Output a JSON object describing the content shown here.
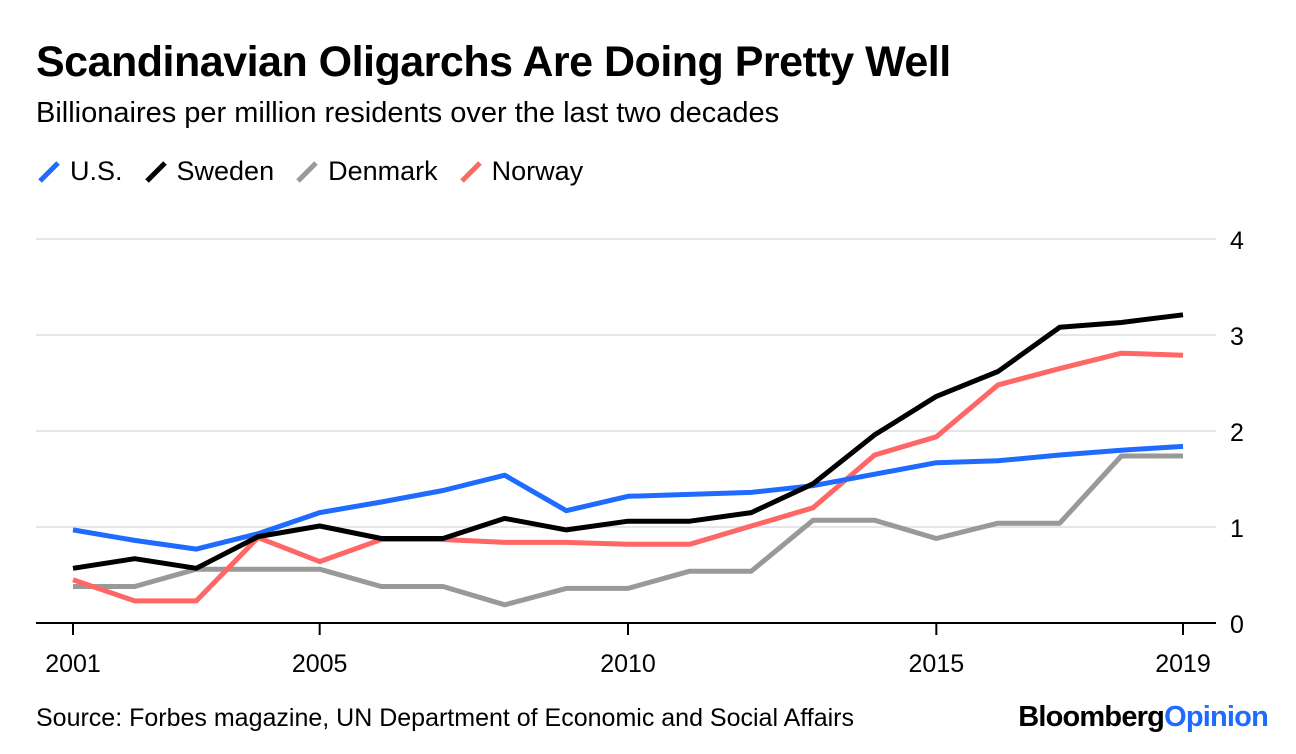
{
  "title": "Scandinavian Oligarchs Are Doing Pretty Well",
  "subtitle": "Billionaires per million residents over the last two decades",
  "source": "Source: Forbes magazine, UN Department of Economic and Social Affairs",
  "brand": {
    "part1": "Bloomberg",
    "part2": "Opinion",
    "color1": "#000000",
    "color2": "#1f6bff"
  },
  "chart_data": {
    "type": "line",
    "x": [
      2001,
      2002,
      2003,
      2004,
      2005,
      2006,
      2007,
      2008,
      2009,
      2010,
      2011,
      2012,
      2013,
      2014,
      2015,
      2016,
      2017,
      2018,
      2019
    ],
    "x_ticks": [
      2001,
      2005,
      2010,
      2015,
      2019
    ],
    "y_ticks": [
      0,
      1,
      2,
      3,
      4
    ],
    "ylim": [
      0,
      4
    ],
    "grid": true,
    "y_axis_side": "right",
    "legend_position": "top-left",
    "series": [
      {
        "name": "U.S.",
        "color": "#1f6bff",
        "values": [
          0.97,
          0.86,
          0.77,
          0.93,
          1.15,
          1.26,
          1.38,
          1.54,
          1.17,
          1.32,
          1.34,
          1.36,
          1.43,
          1.55,
          1.67,
          1.69,
          1.75,
          1.8,
          1.84
        ]
      },
      {
        "name": "Sweden",
        "color": "#000000",
        "values": [
          0.57,
          0.67,
          0.57,
          0.9,
          1.01,
          0.88,
          0.88,
          1.09,
          0.97,
          1.06,
          1.06,
          1.15,
          1.45,
          1.96,
          2.36,
          2.62,
          3.08,
          3.13,
          3.21
        ]
      },
      {
        "name": "Denmark",
        "color": "#999999",
        "values": [
          0.38,
          0.38,
          0.56,
          0.56,
          0.56,
          0.38,
          0.38,
          0.19,
          0.36,
          0.36,
          0.54,
          0.54,
          1.07,
          1.07,
          0.88,
          1.04,
          1.04,
          1.74,
          1.74
        ]
      },
      {
        "name": "Norway",
        "color": "#ff6666",
        "values": [
          0.45,
          0.23,
          0.23,
          0.89,
          0.64,
          0.87,
          0.87,
          0.84,
          0.84,
          0.82,
          0.82,
          1.01,
          1.2,
          1.75,
          1.94,
          2.48,
          2.65,
          2.81,
          2.79
        ]
      }
    ]
  }
}
